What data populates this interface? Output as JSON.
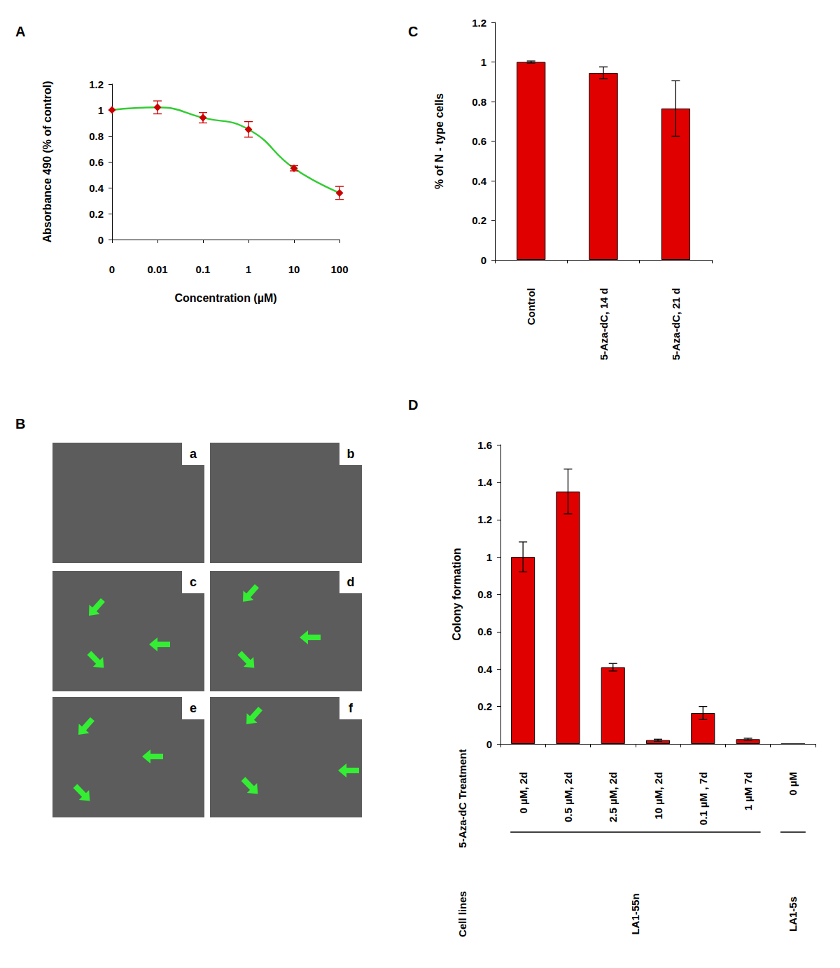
{
  "chart_data": [
    {
      "type": "line",
      "title": "A",
      "x_label": "Concentration (µM)",
      "y_label": "Absorbance 490 (% of control)",
      "categories": [
        "0",
        "0.01",
        "0.1",
        "1",
        "10",
        "100"
      ],
      "values": [
        1,
        1.02,
        0.94,
        0.85,
        0.55,
        0.36
      ],
      "errors": [
        0,
        0.05,
        0.04,
        0.06,
        0.02,
        0.05
      ],
      "color": "#33cc33",
      "marker": "diamond",
      "ylim": [
        0,
        1.2
      ],
      "yticks": [
        0,
        0.2,
        0.4,
        0.6,
        0.8,
        1,
        1.2
      ],
      "grid": false
    },
    {
      "type": "images",
      "title": "B",
      "panels": [
        "a",
        "b",
        "c",
        "d",
        "e",
        "f"
      ]
    },
    {
      "type": "bar",
      "title": "C",
      "y_label": "% of N - type cells",
      "categories": [
        "Control",
        "5-Aza-dC, 14 d",
        "5-Aza-dC, 21 d"
      ],
      "values": [
        1.0,
        0.945,
        0.765
      ],
      "errors": [
        0.005,
        0.03,
        0.14
      ],
      "color": "#e00000",
      "ylim": [
        0,
        1.2
      ],
      "yticks": [
        0,
        0.2,
        0.4,
        0.6,
        0.8,
        1,
        1.2
      ],
      "grid": false
    },
    {
      "type": "bar",
      "title": "D",
      "y_label": "Colony formation",
      "categories": [
        "0 µM, 2d",
        "0.5 µM, 2d",
        "2.5 µM, 2d",
        "10 µM, 2d",
        "0.1 µM , 7d",
        "1 µM 7d",
        "0 µM"
      ],
      "values": [
        1.0,
        1.35,
        0.41,
        0.02,
        0.165,
        0.025,
        0
      ],
      "errors": [
        0.08,
        0.12,
        0.02,
        0.005,
        0.035,
        0.005,
        0
      ],
      "color": "#e00000",
      "row_labels": [
        "5-Aza-dC Treatment",
        "Cell lines"
      ],
      "groups": [
        {
          "label": "LA1-55n",
          "count": 6
        },
        {
          "label": "LA1-5s",
          "count": 1
        }
      ],
      "ylim": [
        0,
        1.6
      ],
      "yticks": [
        0,
        0.2,
        0.4,
        0.6,
        0.8,
        1,
        1.2,
        1.4,
        1.6
      ],
      "grid": false
    }
  ]
}
